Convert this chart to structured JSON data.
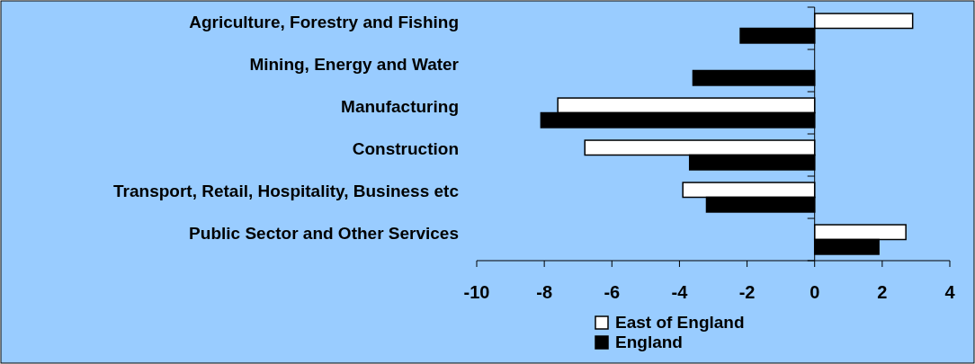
{
  "chart_data": {
    "type": "bar",
    "orientation": "horizontal",
    "categories": [
      "Agriculture, Forestry and Fishing",
      "Mining, Energy and Water",
      "Manufacturing",
      "Construction",
      "Transport, Retail, Hospitality, Business etc",
      "Public Sector and Other Services"
    ],
    "series": [
      {
        "name": "East of England",
        "color": "#ffffff",
        "values": [
          2.9,
          0,
          -7.6,
          -6.8,
          -3.9,
          2.7
        ]
      },
      {
        "name": "England",
        "color": "#000000",
        "values": [
          -2.2,
          -3.6,
          -8.1,
          -3.7,
          -3.2,
          1.9
        ]
      }
    ],
    "xlim": [
      -10,
      4
    ],
    "xticks": [
      -10,
      -8,
      -6,
      -4,
      -2,
      0,
      2,
      4
    ],
    "legend": "bottom"
  }
}
